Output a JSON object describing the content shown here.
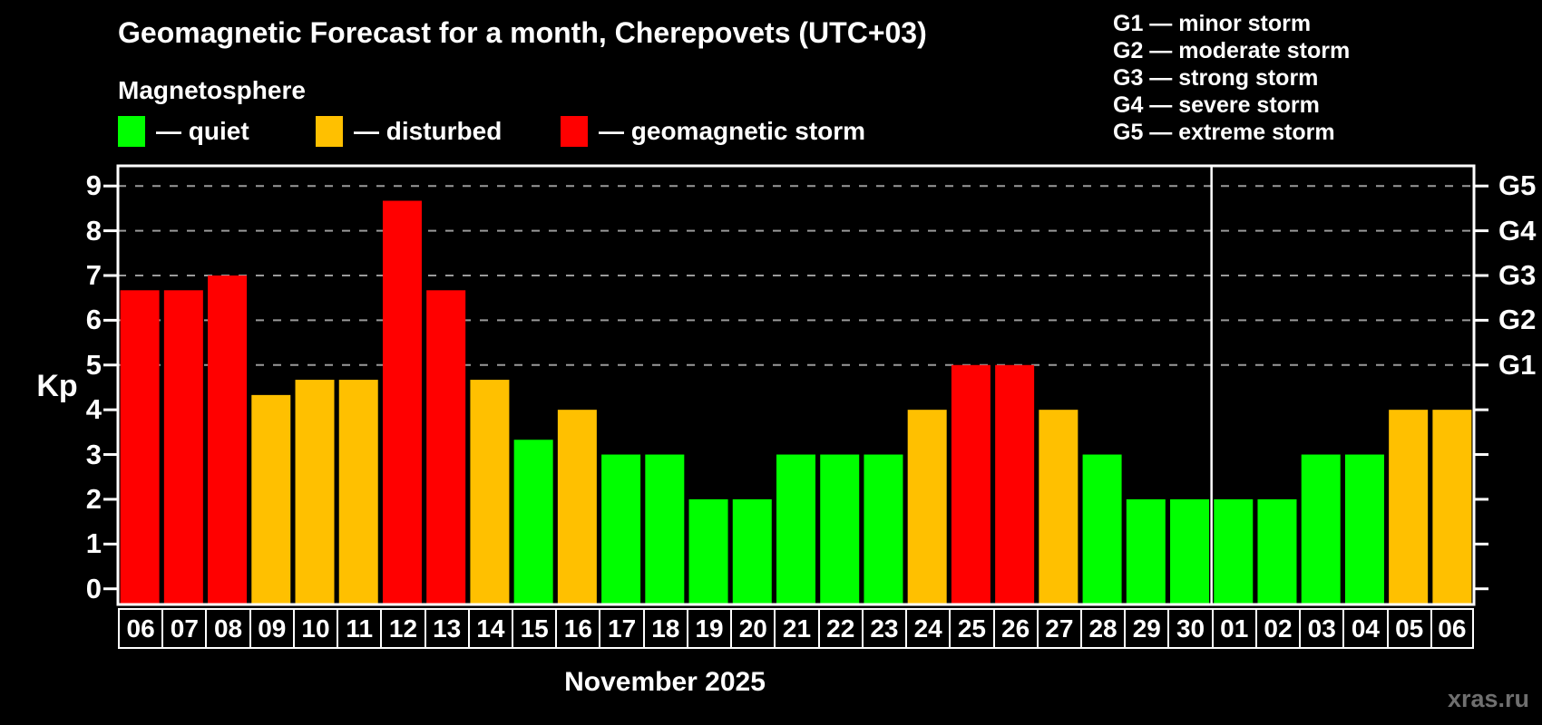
{
  "title": "Geomagnetic Forecast for a month, Cherepovets (UTC+03)",
  "subtitle": "Magnetosphere",
  "legend": {
    "items": [
      {
        "key": "quiet",
        "label": "— quiet",
        "color": "#00ff00"
      },
      {
        "key": "disturbed",
        "label": "— disturbed",
        "color": "#ffc000"
      },
      {
        "key": "storm",
        "label": "— geomagnetic storm",
        "color": "#ff0000"
      }
    ]
  },
  "storm_scale_legend": [
    "G1 — minor storm",
    "G2 — moderate storm",
    "G3 — strong storm",
    "G4 — severe storm",
    "G5 — extreme storm"
  ],
  "axes": {
    "y_label": "Kp",
    "y_ticks": [
      0,
      1,
      2,
      3,
      4,
      5,
      6,
      7,
      8,
      9
    ],
    "right_g_labels": [
      {
        "kp": 5,
        "label": "G1"
      },
      {
        "kp": 6,
        "label": "G2"
      },
      {
        "kp": 7,
        "label": "G3"
      },
      {
        "kp": 8,
        "label": "G4"
      },
      {
        "kp": 9,
        "label": "G5"
      }
    ],
    "x_month_label": "November 2025"
  },
  "watermark": "xras.ru",
  "colors": {
    "quiet": "#00ff00",
    "disturbed": "#ffc000",
    "storm": "#ff0000",
    "grid": "#9a9a9a",
    "axis": "#ffffff",
    "background": "#000000"
  },
  "chart_data": {
    "type": "bar",
    "title": "Geomagnetic Forecast for a month, Cherepovets (UTC+03)",
    "xlabel": "November 2025",
    "ylabel": "Kp",
    "ylim": [
      0,
      9.45
    ],
    "grid": "dashed horizontal at Kp 5-9 (G1-G5 levels)",
    "legend_position": "top-left",
    "categories": [
      "06",
      "07",
      "08",
      "09",
      "10",
      "11",
      "12",
      "13",
      "14",
      "15",
      "16",
      "17",
      "18",
      "19",
      "20",
      "21",
      "22",
      "23",
      "24",
      "25",
      "26",
      "27",
      "28",
      "29",
      "30",
      "01",
      "02",
      "03",
      "04",
      "05",
      "06"
    ],
    "values": [
      6.67,
      6.67,
      7,
      4.33,
      4.67,
      4.67,
      8.67,
      6.67,
      4.67,
      3.33,
      4,
      3,
      3,
      2,
      2,
      3,
      3,
      3,
      4,
      5,
      5,
      4,
      3,
      2,
      2,
      2,
      2,
      3,
      3,
      4,
      4
    ],
    "conditions": [
      "storm",
      "storm",
      "storm",
      "disturbed",
      "disturbed",
      "disturbed",
      "storm",
      "storm",
      "disturbed",
      "quiet",
      "disturbed",
      "quiet",
      "quiet",
      "quiet",
      "quiet",
      "quiet",
      "quiet",
      "quiet",
      "disturbed",
      "storm",
      "storm",
      "disturbed",
      "quiet",
      "quiet",
      "quiet",
      "quiet",
      "quiet",
      "quiet",
      "quiet",
      "disturbed",
      "disturbed"
    ],
    "gridlines_at": [
      5,
      6,
      7,
      8,
      9
    ],
    "month_separator_after_index": 24
  }
}
